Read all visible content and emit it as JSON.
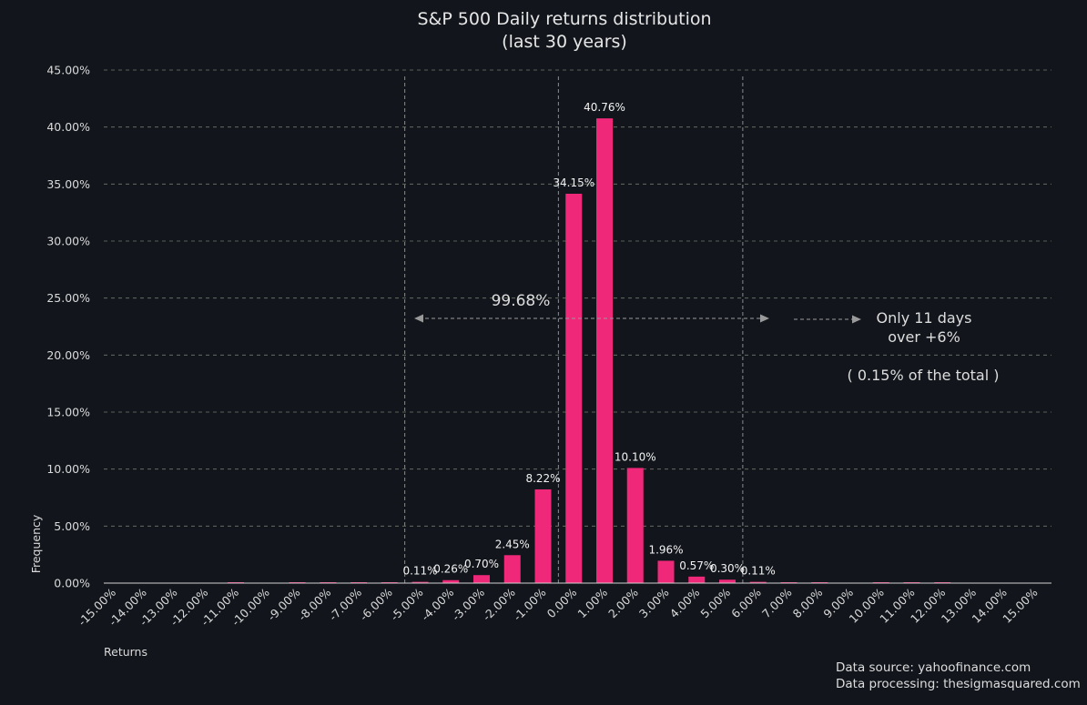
{
  "chart_data": {
    "type": "bar",
    "title": "S&P 500 Daily returns distribution",
    "subtitle": "(last 30 years)",
    "xlabel": "Returns",
    "ylabel": "Frequency",
    "ylim": [
      0,
      45
    ],
    "y_ticks": [
      0,
      5,
      10,
      15,
      20,
      25,
      30,
      35,
      40,
      45
    ],
    "y_tick_labels": [
      "0.00%",
      "5.00%",
      "10.00%",
      "15.00%",
      "20.00%",
      "25.00%",
      "30.00%",
      "35.00%",
      "40.00%",
      "45.00%"
    ],
    "categories": [
      "-15.00%",
      "-14.00%",
      "-13.00%",
      "-12.00%",
      "-11.00%",
      "-10.00%",
      "-9.00%",
      "-8.00%",
      "-7.00%",
      "-6.00%",
      "-5.00%",
      "-4.00%",
      "-3.00%",
      "-2.00%",
      "-1.00%",
      "0.00%",
      "1.00%",
      "2.00%",
      "3.00%",
      "4.00%",
      "5.00%",
      "6.00%",
      "7.00%",
      "8.00%",
      "9.00%",
      "10.00%",
      "11.00%",
      "12.00%",
      "13.00%",
      "14.00%",
      "15.00%"
    ],
    "values": [
      0,
      0,
      0,
      0,
      0.02,
      0,
      0.02,
      0.03,
      0.03,
      0.04,
      0.11,
      0.26,
      0.7,
      2.45,
      8.22,
      34.15,
      40.76,
      10.1,
      1.96,
      0.57,
      0.3,
      0.11,
      0.04,
      0.03,
      0,
      0.02,
      0.02,
      0.03,
      0,
      0,
      0
    ],
    "value_labels": [
      "",
      "",
      "",
      "",
      "",
      "",
      "",
      "",
      "",
      "",
      "0.11%",
      "0.26%",
      "0.70%",
      "2.45%",
      "8.22%",
      "34.15%",
      "40.76%",
      "10.10%",
      "1.96%",
      "0.57%",
      "0.30%",
      "0.11%",
      "",
      "",
      "",
      "",
      "",
      "",
      "",
      "",
      ""
    ],
    "bar_color": "#f0287a",
    "grid": true,
    "vlines_at_categories": [
      "-5.00%",
      "0.00%",
      "6.00%"
    ],
    "annotations": {
      "range_label": "99.68%",
      "right_line1": "Only 11 days",
      "right_line2": "over +6%",
      "right_line3": "( 0.15% of the total )"
    },
    "footer": {
      "source": "Data source: yahoofinance.com",
      "processing": "Data processing: thesigmasquared.com"
    }
  }
}
